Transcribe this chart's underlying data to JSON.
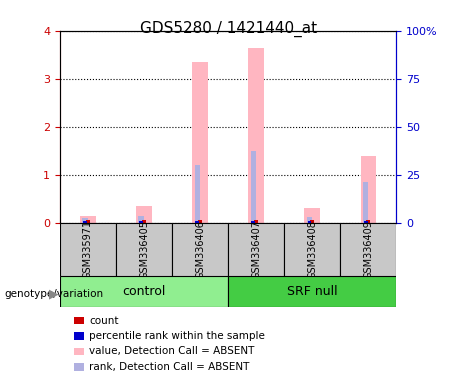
{
  "title": "GDS5280 / 1421440_at",
  "samples": [
    "GSM335971",
    "GSM336405",
    "GSM336406",
    "GSM336407",
    "GSM336408",
    "GSM336409"
  ],
  "group_labels": [
    "control",
    "SRF null"
  ],
  "group_colors": [
    "#90ee90",
    "#44cc44"
  ],
  "sample_box_color": "#c8c8c8",
  "pink_values": [
    0.15,
    0.35,
    3.35,
    3.65,
    0.3,
    1.4
  ],
  "blue_values": [
    0.1,
    0.13,
    1.2,
    1.5,
    0.12,
    0.85
  ],
  "red_values": [
    0.05,
    0.05,
    0.05,
    0.05,
    0.05,
    0.05
  ],
  "dark_blue_values": [
    0.04,
    0.04,
    0.04,
    0.04,
    0.04,
    0.04
  ],
  "ylim_left": [
    0,
    4
  ],
  "ylim_right": [
    0,
    100
  ],
  "yticks_left": [
    0,
    1,
    2,
    3,
    4
  ],
  "ytick_labels_right": [
    "0",
    "25",
    "50",
    "75",
    "100%"
  ],
  "left_color": "#cc0000",
  "right_color": "#0000cc",
  "legend_items": [
    {
      "label": "count",
      "color": "#cc0000"
    },
    {
      "label": "percentile rank within the sample",
      "color": "#0000cc"
    },
    {
      "label": "value, Detection Call = ABSENT",
      "color": "#ffb6c1"
    },
    {
      "label": "rank, Detection Call = ABSENT",
      "color": "#b0b0e0"
    }
  ]
}
